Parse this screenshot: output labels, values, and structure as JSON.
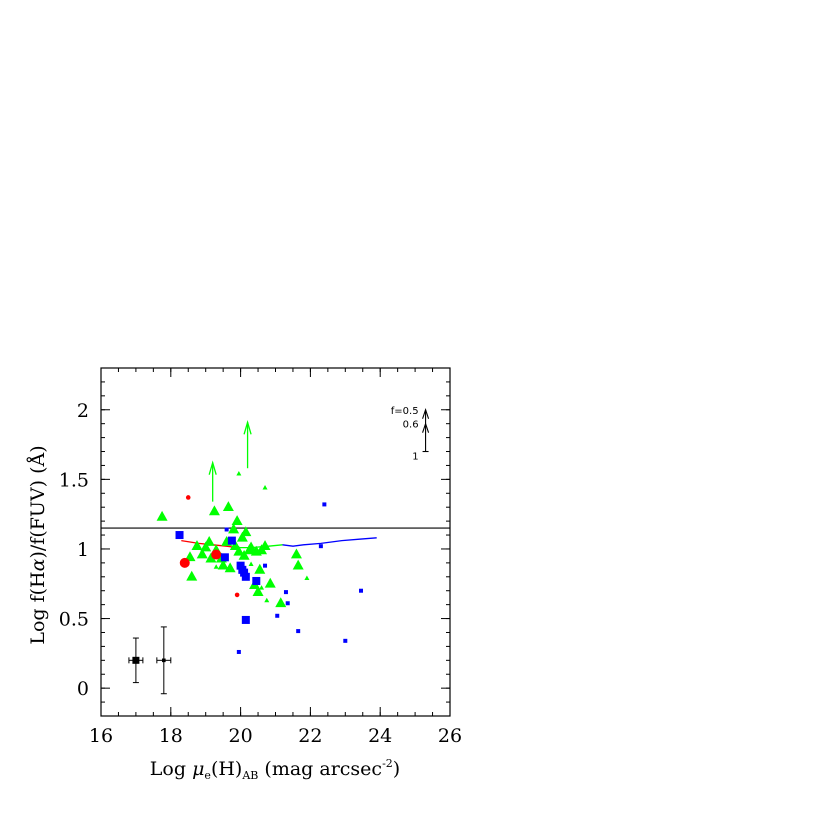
{
  "chart_data": {
    "type": "scatter",
    "xlabel": {
      "prefix": "Log ",
      "mu": "μ",
      "sub_e": "e",
      "mid": "(H)",
      "sub_ab": "AB",
      "suffix": " (mag arcsec",
      "exp": "-2",
      "close": ")"
    },
    "ylabel": {
      "prefix": "Log f(H",
      "alpha": "α",
      "suffix": ")/f(FUV)    (Å)"
    },
    "xlim": [
      16,
      26
    ],
    "ylim": [
      -0.2,
      2.3
    ],
    "x_ticks": [
      16,
      18,
      20,
      22,
      24,
      26
    ],
    "x_tick_labels": [
      "16",
      "18",
      "20",
      "22",
      "24",
      "26"
    ],
    "y_ticks": [
      0,
      0.5,
      1,
      1.5,
      2
    ],
    "y_tick_labels": [
      "0",
      "0.5",
      "1",
      "1.5",
      "2"
    ],
    "grid": false,
    "colors": {
      "green": "#00ff00",
      "blue": "#0000ff",
      "red": "#ff0000",
      "black": "#000000"
    },
    "reference_line": {
      "y": 1.15,
      "color": "#000000"
    },
    "series": [
      {
        "marker": "triangle",
        "color": "#00ff00",
        "points": [
          [
            17.75,
            1.23,
            "big"
          ],
          [
            18.55,
            0.94,
            "big"
          ],
          [
            18.6,
            0.8,
            "big"
          ],
          [
            18.75,
            1.02,
            "big"
          ],
          [
            18.9,
            0.96,
            "big"
          ],
          [
            19.0,
            1.01,
            "big"
          ],
          [
            19.1,
            1.05,
            "big"
          ],
          [
            19.15,
            0.93,
            "big"
          ],
          [
            19.25,
            1.27,
            "big"
          ],
          [
            19.3,
            0.99,
            "big"
          ],
          [
            19.45,
            0.93,
            "big"
          ],
          [
            19.5,
            0.88,
            "big"
          ],
          [
            19.6,
            1.05,
            "big"
          ],
          [
            19.65,
            1.3,
            "big"
          ],
          [
            19.7,
            0.86,
            "big"
          ],
          [
            19.8,
            1.14,
            "big"
          ],
          [
            19.85,
            1.02,
            "big"
          ],
          [
            19.9,
            1.2,
            "big"
          ],
          [
            19.95,
            0.98,
            "big"
          ],
          [
            20.05,
            1.08,
            "big"
          ],
          [
            20.1,
            0.95,
            "big"
          ],
          [
            20.15,
            1.12,
            "big"
          ],
          [
            20.25,
            0.99,
            "big"
          ],
          [
            20.3,
            1.01,
            "big"
          ],
          [
            20.4,
            0.74,
            "big"
          ],
          [
            20.45,
            0.98,
            "big"
          ],
          [
            20.5,
            0.69,
            "big"
          ],
          [
            20.55,
            0.85,
            "big"
          ],
          [
            20.6,
            0.99,
            "big"
          ],
          [
            20.7,
            1.02,
            "big"
          ],
          [
            20.85,
            0.75,
            "big"
          ],
          [
            21.15,
            0.61,
            "big"
          ],
          [
            21.6,
            0.96,
            "big"
          ],
          [
            21.65,
            0.88,
            "big"
          ],
          [
            19.3,
            0.87,
            "small"
          ],
          [
            19.95,
            1.54,
            "small"
          ],
          [
            20.0,
            1.08,
            "small"
          ],
          [
            20.7,
            1.44,
            "small"
          ],
          [
            20.75,
            0.63,
            "small"
          ],
          [
            20.3,
            0.89,
            "small"
          ],
          [
            21.9,
            0.79,
            "small"
          ],
          [
            20.6,
            0.72,
            "small"
          ]
        ]
      },
      {
        "marker": "square",
        "color": "#0000ff",
        "points": [
          [
            18.25,
            1.1,
            "big"
          ],
          [
            19.55,
            0.94,
            "big"
          ],
          [
            19.75,
            1.06,
            "big"
          ],
          [
            20.0,
            0.88,
            "big"
          ],
          [
            20.05,
            0.85,
            "big"
          ],
          [
            20.1,
            0.83,
            "big"
          ],
          [
            20.15,
            0.8,
            "big"
          ],
          [
            20.15,
            0.49,
            "big"
          ],
          [
            20.45,
            0.77,
            "big"
          ],
          [
            19.6,
            1.14,
            "small"
          ],
          [
            20.7,
            0.88,
            "small"
          ],
          [
            21.05,
            0.52,
            "small"
          ],
          [
            21.3,
            0.69,
            "small"
          ],
          [
            21.35,
            0.61,
            "small"
          ],
          [
            21.65,
            0.41,
            "small"
          ],
          [
            22.3,
            1.02,
            "small"
          ],
          [
            22.4,
            1.32,
            "small"
          ],
          [
            23.0,
            0.34,
            "small"
          ],
          [
            23.45,
            0.7,
            "small"
          ],
          [
            19.95,
            0.26,
            "small"
          ]
        ]
      },
      {
        "marker": "circle",
        "color": "#ff0000",
        "points": [
          [
            18.4,
            0.9,
            "big"
          ],
          [
            19.3,
            0.96,
            "big"
          ],
          [
            18.5,
            1.37,
            "small"
          ],
          [
            19.9,
            0.67,
            "small"
          ]
        ]
      }
    ],
    "lower_limits": [
      {
        "x": 19.2,
        "y_from": 1.34,
        "y_to": 1.62,
        "color": "#00ff00"
      },
      {
        "x": 20.2,
        "y_from": 1.58,
        "y_to": 1.91,
        "color": "#00ff00"
      }
    ],
    "curves": [
      {
        "color": "#ff0000",
        "points": [
          [
            18.3,
            1.06
          ],
          [
            18.8,
            1.04
          ],
          [
            19.2,
            1.03
          ],
          [
            19.6,
            1.02
          ],
          [
            19.9,
            1.01
          ]
        ]
      },
      {
        "color": "#00ff00",
        "points": [
          [
            19.9,
            1.01
          ],
          [
            20.3,
            1.01
          ],
          [
            20.8,
            1.02
          ],
          [
            21.2,
            1.03
          ]
        ]
      },
      {
        "color": "#0000ff",
        "points": [
          [
            21.2,
            1.03
          ],
          [
            21.5,
            1.02
          ],
          [
            21.8,
            1.03
          ],
          [
            22.3,
            1.04
          ],
          [
            22.9,
            1.06
          ],
          [
            23.4,
            1.07
          ],
          [
            23.9,
            1.08
          ]
        ]
      }
    ],
    "error_bars": [
      {
        "x": 17.0,
        "y": 0.2,
        "xerr": 0.2,
        "yerr": 0.16,
        "marker": "big"
      },
      {
        "x": 17.8,
        "y": 0.2,
        "xerr": 0.2,
        "yerr": 0.24,
        "marker": "small"
      }
    ],
    "scale_inset": {
      "x": 25.3,
      "levels": [
        {
          "label": "f=0.5",
          "y": 2.0
        },
        {
          "label": "0.6",
          "y": 1.9
        },
        {
          "label": "1",
          "y": 1.7
        }
      ]
    }
  }
}
